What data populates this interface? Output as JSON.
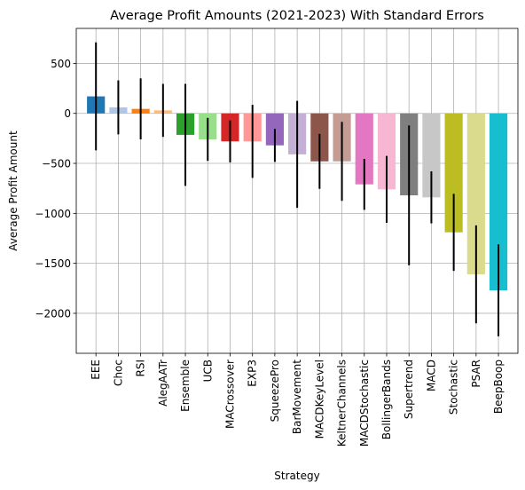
{
  "chart_data": {
    "type": "bar",
    "title": "Average Profit Amounts (2021-2023) With Standard Errors",
    "xlabel": "Strategy",
    "ylabel": "Average Profit Amount",
    "ylim": [
      -2400,
      850
    ],
    "yticks": [
      500,
      0,
      -500,
      -1000,
      -1500,
      -2000
    ],
    "ytick_labels": [
      "500",
      "0",
      "−500",
      "−1000",
      "−1500",
      "−2000"
    ],
    "grid": true,
    "categories": [
      "EEE",
      "Choc",
      "RSI",
      "AlegAATr",
      "Ensemble",
      "UCB",
      "MACrossover",
      "EXP3",
      "SqueezePro",
      "BarMovement",
      "MACDKeyLevel",
      "KeltnerChannels",
      "MACDStochastic",
      "BollingerBands",
      "Supertrend",
      "MACD",
      "Stochastic",
      "PSAR",
      "BeepBoop"
    ],
    "values": [
      170,
      60,
      45,
      30,
      -215,
      -260,
      -280,
      -280,
      -320,
      -410,
      -480,
      -480,
      -710,
      -760,
      -820,
      -840,
      -1190,
      -1610,
      -1770
    ],
    "errors": [
      540,
      270,
      305,
      265,
      510,
      215,
      210,
      365,
      165,
      535,
      275,
      395,
      255,
      335,
      700,
      260,
      385,
      490,
      460
    ],
    "colors": [
      "#1f77b4",
      "#aec7e8",
      "#ff7f0e",
      "#ffbb78",
      "#2ca02c",
      "#98df8a",
      "#d62728",
      "#ff9896",
      "#9467bd",
      "#c5b0d5",
      "#8c564b",
      "#c49c94",
      "#e377c2",
      "#f7b6d2",
      "#7f7f7f",
      "#c7c7c7",
      "#bcbd22",
      "#dbdb8d",
      "#17becf"
    ]
  }
}
